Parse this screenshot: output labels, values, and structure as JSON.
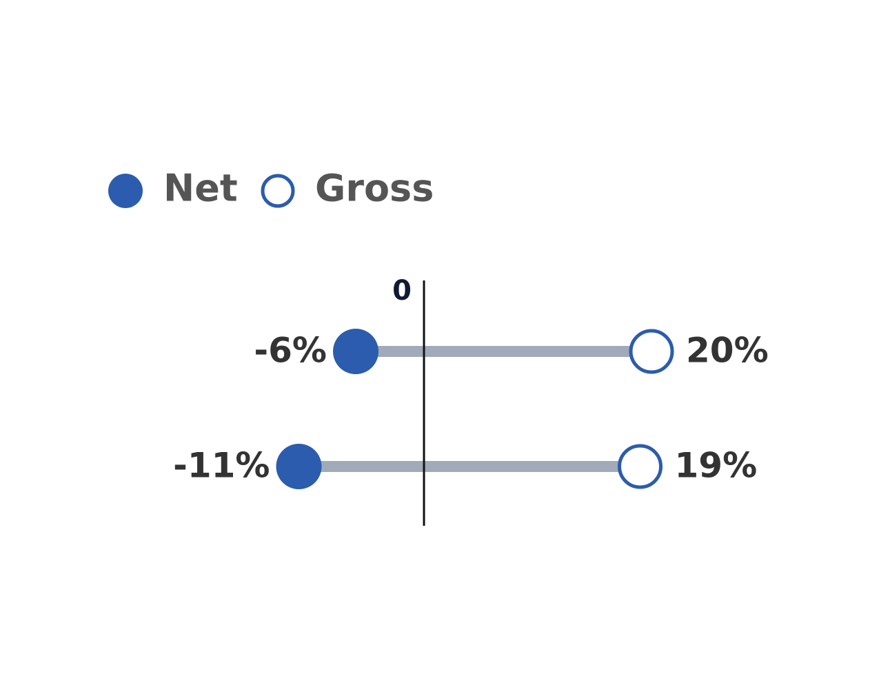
{
  "chart_data": {
    "type": "dumbbell",
    "categories": [
      null,
      null
    ],
    "series": [
      {
        "name": "Net",
        "color": "#2b5cad",
        "values": [
          -6,
          -11
        ],
        "value_labels": [
          "-6%",
          "-11%"
        ]
      },
      {
        "name": "Gross",
        "color": "#2b5cad",
        "values": [
          20,
          19
        ],
        "value_labels": [
          "20%",
          "19%"
        ]
      }
    ],
    "connector_color": "#a0aab8",
    "xlim": [
      -15,
      30
    ],
    "xticks": [
      0
    ]
  }
}
